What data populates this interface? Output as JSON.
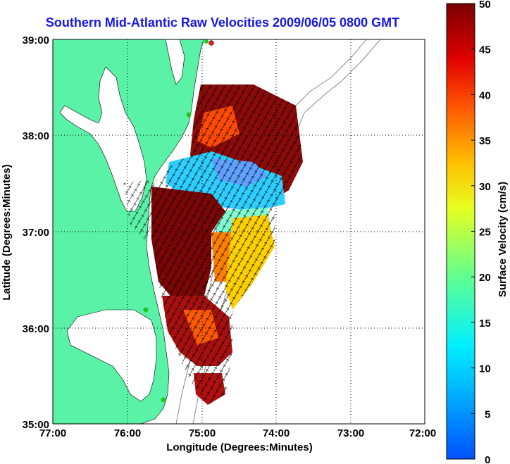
{
  "title": "Southern Mid-Atlantic Raw Velocities 2009/06/05 0800 GMT",
  "xlabel": "Longitude (Degrees:Minutes)",
  "ylabel": "Latitude (Degrees:Minutes)",
  "x_ticks": [
    "77:00",
    "76:00",
    "75:00",
    "74:00",
    "73:00",
    "72:00"
  ],
  "y_ticks": [
    "39:00",
    "38:00",
    "37:00",
    "36:00",
    "35:00"
  ],
  "colorbar": {
    "label": "Surface Velocity (cm/s)",
    "ticks": [
      "50",
      "45",
      "40",
      "35",
      "30",
      "25",
      "20",
      "15",
      "10",
      "5",
      "0"
    ]
  },
  "colors": {
    "land": "#5af2a6",
    "title": "#1616e6",
    "station_green": "#1ec81e",
    "station_red": "#e02020"
  },
  "chart_data": {
    "type": "heatmap",
    "title": "Southern Mid-Atlantic Raw Velocities 2009/06/05 0800 GMT",
    "xlabel": "Longitude (Degrees:Minutes)",
    "ylabel": "Latitude (Degrees:Minutes)",
    "xlim": [
      -77.0,
      -72.0
    ],
    "ylim": [
      35.0,
      39.0
    ],
    "colorbar_range": [
      0,
      50
    ],
    "colorbar_units": "cm/s",
    "grid": true
  }
}
